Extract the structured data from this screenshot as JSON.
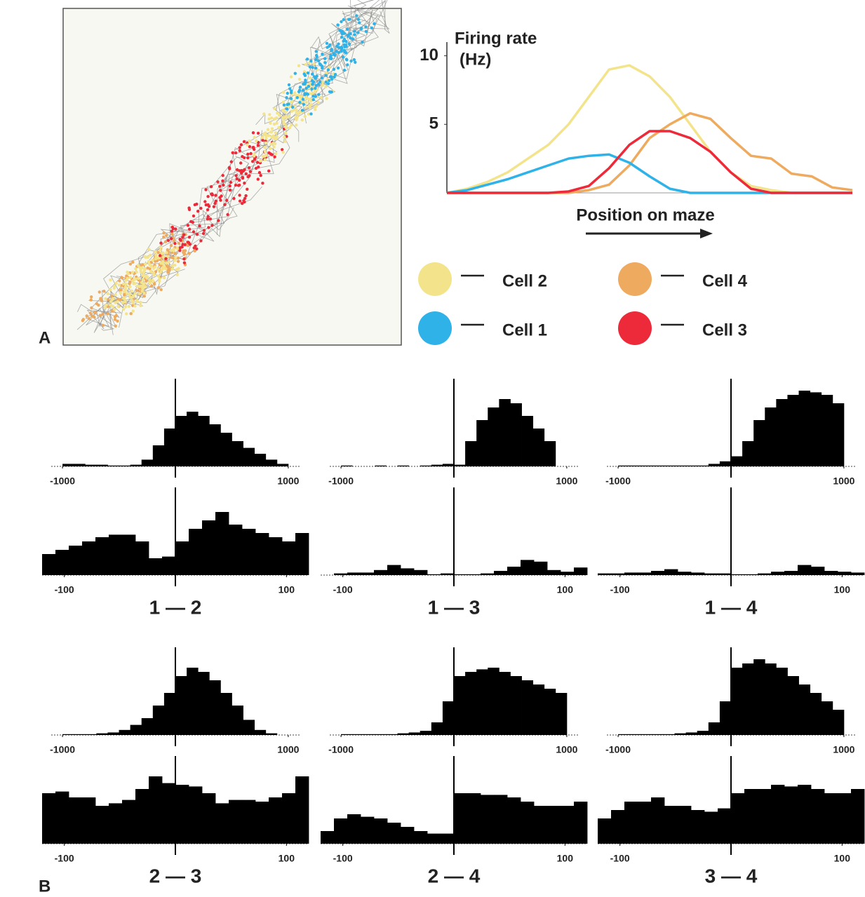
{
  "panel_labels": [
    "A",
    "B"
  ],
  "chart_data": [
    {
      "type": "line",
      "ylabel": [
        "Firing rate",
        "(Hz)"
      ],
      "xlabel": "Position on maze",
      "x": [
        0,
        1,
        2,
        3,
        4,
        5,
        6,
        7,
        8,
        9,
        10,
        11,
        12,
        13,
        14,
        15,
        16,
        17,
        18,
        19,
        20
      ],
      "xlim": [
        0,
        20
      ],
      "ylim": [
        0,
        11
      ],
      "yticks": [
        5,
        10
      ],
      "series": [
        {
          "name": "Cell 2",
          "color": "#f3e48c",
          "values": [
            0,
            0.3,
            0.8,
            1.5,
            2.5,
            3.5,
            5,
            7,
            9,
            9.3,
            8.5,
            7,
            5,
            3,
            1.5,
            0.5,
            0.2,
            0,
            0,
            0,
            0
          ]
        },
        {
          "name": "Cell 4",
          "color": "#eeaa5e",
          "values": [
            0,
            0,
            0,
            0,
            0,
            0,
            0,
            0.2,
            0.6,
            2,
            4,
            5,
            5.8,
            5.4,
            4,
            2.7,
            2.5,
            1.4,
            1.2,
            0.4,
            0.2
          ]
        },
        {
          "name": "Cell 1",
          "color": "#2fb2e8",
          "values": [
            0,
            0.2,
            0.6,
            1,
            1.5,
            2,
            2.5,
            2.7,
            2.8,
            2.2,
            1.2,
            0.3,
            0,
            0,
            0,
            0,
            0,
            0,
            0,
            0,
            0
          ]
        },
        {
          "name": "Cell 3",
          "color": "#ec2a3a",
          "values": [
            0,
            0,
            0,
            0,
            0,
            0,
            0.1,
            0.5,
            1.8,
            3.5,
            4.5,
            4.5,
            4,
            3,
            1.5,
            0.3,
            0,
            0,
            0,
            0,
            0
          ]
        }
      ]
    },
    {
      "type": "histogram",
      "bins": [
        -1000,
        -900,
        -800,
        -700,
        -600,
        -500,
        -400,
        -300,
        -200,
        -100,
        0,
        100,
        200,
        300,
        400,
        500,
        600,
        700,
        800,
        900,
        1000
      ],
      "values": [
        3,
        3,
        2,
        2,
        1,
        1,
        2,
        8,
        25,
        45,
        60,
        65,
        60,
        50,
        40,
        30,
        22,
        15,
        8,
        3
      ],
      "xlim": [
        -1100,
        1100
      ],
      "xticks": [
        -1000,
        1000
      ],
      "ylim": [
        0,
        100
      ]
    },
    {
      "type": "histogram",
      "bins": [
        -1000,
        -900,
        -800,
        -700,
        -600,
        -500,
        -400,
        -300,
        -200,
        -100,
        0,
        100,
        200,
        300,
        400,
        500,
        600,
        700,
        800,
        900,
        1000
      ],
      "values": [
        1,
        0,
        0,
        1,
        0,
        1,
        0,
        1,
        2,
        3,
        2,
        30,
        55,
        70,
        80,
        75,
        60,
        45,
        30,
        0
      ],
      "xlim": [
        -1100,
        1100
      ],
      "xticks": [
        -1000,
        1000
      ],
      "ylim": [
        0,
        100
      ]
    },
    {
      "type": "histogram",
      "bins": [
        -1000,
        -900,
        -800,
        -700,
        -600,
        -500,
        -400,
        -300,
        -200,
        -100,
        0,
        100,
        200,
        300,
        400,
        500,
        600,
        700,
        800,
        900,
        1000
      ],
      "values": [
        1,
        1,
        1,
        1,
        1,
        1,
        1,
        1,
        3,
        6,
        12,
        30,
        55,
        70,
        80,
        85,
        90,
        88,
        85,
        75
      ],
      "xlim": [
        -1100,
        1100
      ],
      "xticks": [
        -1000,
        1000
      ],
      "ylim": [
        0,
        100
      ]
    },
    {
      "type": "histogram",
      "title": "1 — 2",
      "bins": [
        -120,
        -108,
        -96,
        -84,
        -72,
        -60,
        -48,
        -36,
        -24,
        -12,
        0,
        12,
        24,
        36,
        48,
        60,
        72,
        84,
        96,
        108,
        120
      ],
      "values": [
        25,
        30,
        35,
        40,
        45,
        48,
        48,
        40,
        20,
        22,
        40,
        55,
        65,
        75,
        60,
        55,
        50,
        45,
        40,
        50
      ],
      "xlim": [
        -120,
        120
      ],
      "xticks": [
        -100,
        100
      ],
      "ylim": [
        0,
        100
      ]
    },
    {
      "type": "histogram",
      "title": "1 — 3",
      "bins": [
        -120,
        -108,
        -96,
        -84,
        -72,
        -60,
        -48,
        -36,
        -24,
        -12,
        0,
        12,
        24,
        36,
        48,
        60,
        72,
        84,
        96,
        108,
        120
      ],
      "values": [
        0,
        2,
        3,
        3,
        6,
        12,
        8,
        6,
        1,
        2,
        1,
        1,
        2,
        5,
        10,
        18,
        16,
        6,
        4,
        9
      ],
      "xlim": [
        -120,
        120
      ],
      "xticks": [
        -100,
        100
      ],
      "ylim": [
        0,
        100
      ]
    },
    {
      "type": "histogram",
      "title": "1 — 4",
      "bins": [
        -120,
        -108,
        -96,
        -84,
        -72,
        -60,
        -48,
        -36,
        -24,
        -12,
        0,
        12,
        24,
        36,
        48,
        60,
        72,
        84,
        96,
        108,
        120
      ],
      "values": [
        2,
        2,
        3,
        3,
        5,
        7,
        4,
        3,
        2,
        2,
        1,
        1,
        2,
        4,
        5,
        12,
        10,
        5,
        4,
        3
      ],
      "xlim": [
        -120,
        120
      ],
      "xticks": [
        -100,
        100
      ],
      "ylim": [
        0,
        100
      ]
    },
    {
      "type": "histogram",
      "bins": [
        -1000,
        -900,
        -800,
        -700,
        -600,
        -500,
        -400,
        -300,
        -200,
        -100,
        0,
        100,
        200,
        300,
        400,
        500,
        600,
        700,
        800,
        900,
        1000
      ],
      "values": [
        1,
        1,
        1,
        2,
        3,
        6,
        12,
        20,
        35,
        50,
        70,
        80,
        75,
        65,
        50,
        35,
        18,
        6,
        2,
        0
      ],
      "xlim": [
        -1100,
        1100
      ],
      "xticks": [
        -1000,
        1000
      ],
      "ylim": [
        0,
        100
      ]
    },
    {
      "type": "histogram",
      "bins": [
        -1000,
        -900,
        -800,
        -700,
        -600,
        -500,
        -400,
        -300,
        -200,
        -100,
        0,
        100,
        200,
        300,
        400,
        500,
        600,
        700,
        800,
        900,
        1000
      ],
      "values": [
        1,
        1,
        1,
        1,
        1,
        2,
        3,
        5,
        15,
        40,
        70,
        75,
        78,
        80,
        75,
        70,
        65,
        60,
        55,
        50
      ],
      "xlim": [
        -1100,
        1100
      ],
      "xticks": [
        -1000,
        1000
      ],
      "ylim": [
        0,
        100
      ]
    },
    {
      "type": "histogram",
      "bins": [
        -1000,
        -900,
        -800,
        -700,
        -600,
        -500,
        -400,
        -300,
        -200,
        -100,
        0,
        100,
        200,
        300,
        400,
        500,
        600,
        700,
        800,
        900,
        1000
      ],
      "values": [
        1,
        1,
        1,
        1,
        1,
        2,
        3,
        5,
        15,
        40,
        80,
        85,
        90,
        85,
        80,
        70,
        60,
        50,
        40,
        30
      ],
      "xlim": [
        -1100,
        1100
      ],
      "xticks": [
        -1000,
        1000
      ],
      "ylim": [
        0,
        100
      ]
    },
    {
      "type": "histogram",
      "title": "2 — 3",
      "bins": [
        -120,
        -108,
        -96,
        -84,
        -72,
        -60,
        -48,
        -36,
        -24,
        -12,
        0,
        12,
        24,
        36,
        48,
        60,
        72,
        84,
        96,
        108,
        120
      ],
      "values": [
        60,
        62,
        55,
        55,
        45,
        48,
        52,
        65,
        80,
        72,
        70,
        68,
        60,
        48,
        52,
        52,
        50,
        55,
        60,
        80
      ],
      "xlim": [
        -120,
        120
      ],
      "xticks": [
        -100,
        100
      ],
      "ylim": [
        0,
        100
      ]
    },
    {
      "type": "histogram",
      "title": "2 — 4",
      "bins": [
        -120,
        -108,
        -96,
        -84,
        -72,
        -60,
        -48,
        -36,
        -24,
        -12,
        0,
        12,
        24,
        36,
        48,
        60,
        72,
        84,
        96,
        108,
        120
      ],
      "values": [
        15,
        30,
        35,
        32,
        30,
        25,
        20,
        15,
        12,
        12,
        60,
        60,
        58,
        58,
        55,
        50,
        45,
        45,
        45,
        50
      ],
      "xlim": [
        -120,
        120
      ],
      "xticks": [
        -100,
        100
      ],
      "ylim": [
        0,
        100
      ]
    },
    {
      "type": "histogram",
      "title": "3 — 4",
      "bins": [
        -120,
        -108,
        -96,
        -84,
        -72,
        -60,
        -48,
        -36,
        -24,
        -12,
        0,
        12,
        24,
        36,
        48,
        60,
        72,
        84,
        96,
        108,
        120
      ],
      "values": [
        30,
        40,
        50,
        50,
        55,
        45,
        45,
        40,
        38,
        42,
        60,
        65,
        65,
        70,
        68,
        70,
        65,
        60,
        60,
        65
      ],
      "xlim": [
        -120,
        120
      ],
      "xticks": [
        -100,
        100
      ],
      "ylim": [
        0,
        100
      ]
    }
  ]
}
